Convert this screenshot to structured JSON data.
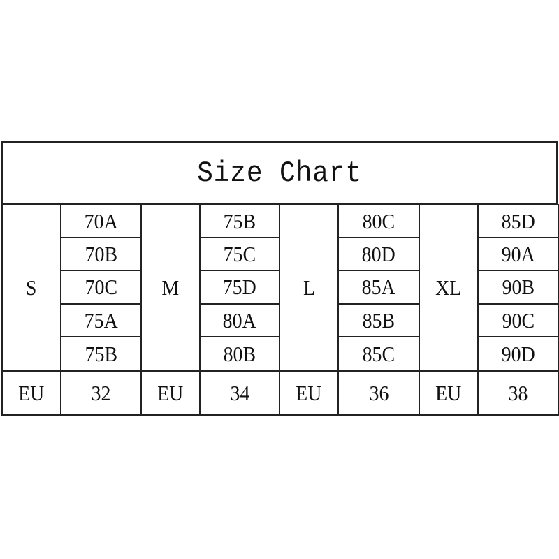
{
  "title": "Size Chart",
  "groups": [
    {
      "size": "S",
      "cups": [
        "70A",
        "70B",
        "70C",
        "75A",
        "75B"
      ],
      "eu_label": "EU",
      "eu_value": "32"
    },
    {
      "size": "M",
      "cups": [
        "75B",
        "75C",
        "75D",
        "80A",
        "80B"
      ],
      "eu_label": "EU",
      "eu_value": "34"
    },
    {
      "size": "L",
      "cups": [
        "80C",
        "80D",
        "85A",
        "85B",
        "85C"
      ],
      "eu_label": "EU",
      "eu_value": "36"
    },
    {
      "size": "XL",
      "cups": [
        "85D",
        "90A",
        "90B",
        "90C",
        "90D"
      ],
      "eu_label": "EU",
      "eu_value": "38"
    }
  ]
}
